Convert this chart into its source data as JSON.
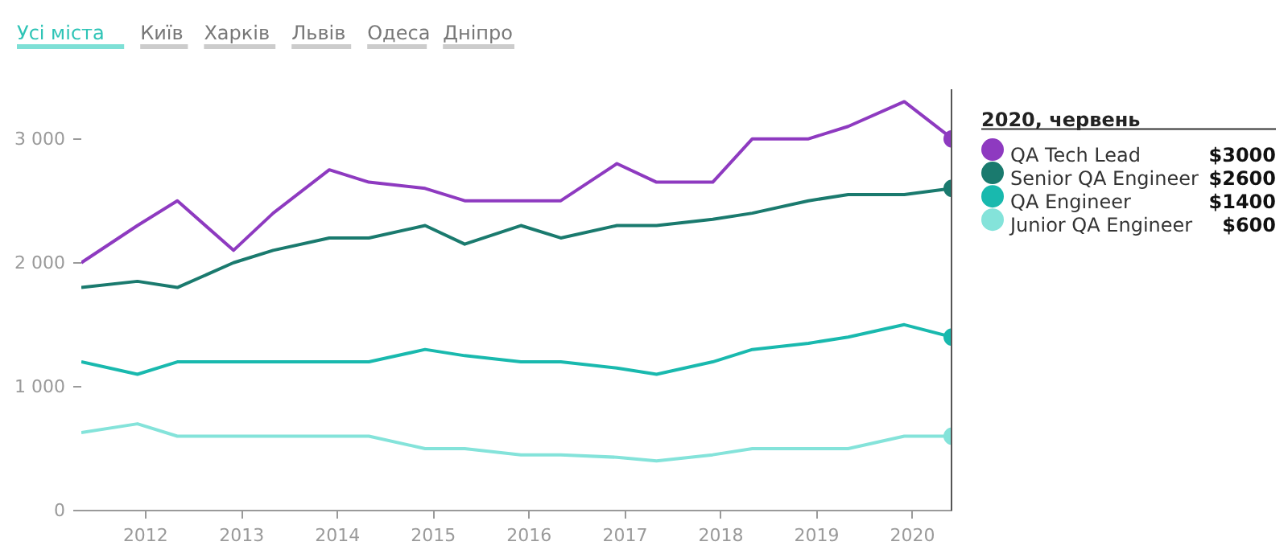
{
  "chart_data": {
    "type": "line",
    "annotations": [
      "Усі міста",
      "Київ",
      "Харків",
      "Львів",
      "Одеса",
      "Дніпро",
      "$3000",
      "$2600",
      "$1400",
      "$600"
    ],
    "legend_title": "2020, червень",
    "x": [
      "2011-05",
      "2011-12",
      "2012-05",
      "2012-12",
      "2013-05",
      "2013-12",
      "2014-05",
      "2014-12",
      "2015-05",
      "2015-12",
      "2016-05",
      "2016-12",
      "2017-05",
      "2017-12",
      "2018-05",
      "2018-12",
      "2019-05",
      "2019-12",
      "2020-06"
    ],
    "series": [
      {
        "name": "QA Tech Lead",
        "color": "#8e3ac0",
        "values": [
          2000,
          2300,
          2500,
          2100,
          2400,
          2750,
          2650,
          2600,
          2500,
          2500,
          2500,
          2800,
          2650,
          2650,
          3000,
          3000,
          3100,
          3300,
          3000
        ]
      },
      {
        "name": "Senior QA Engineer",
        "color": "#1a7a6e",
        "values": [
          1800,
          1850,
          1800,
          2000,
          2100,
          2200,
          2200,
          2300,
          2150,
          2300,
          2200,
          2300,
          2300,
          2350,
          2400,
          2500,
          2550,
          2550,
          2600
        ]
      },
      {
        "name": "QA Engineer",
        "color": "#19b9ae",
        "values": [
          1200,
          1100,
          1200,
          1200,
          1200,
          1200,
          1200,
          1300,
          1250,
          1200,
          1200,
          1150,
          1100,
          1200,
          1300,
          1350,
          1400,
          1500,
          1400
        ]
      },
      {
        "name": "Junior QA Engineer",
        "color": "#84e3da",
        "values": [
          630,
          700,
          600,
          600,
          600,
          600,
          600,
          500,
          500,
          450,
          450,
          430,
          400,
          450,
          500,
          500,
          500,
          600,
          600
        ]
      }
    ],
    "xlim": [
      "2011-05",
      "2020-06"
    ],
    "xticks": [
      "2012",
      "2013",
      "2014",
      "2015",
      "2016",
      "2017",
      "2018",
      "2019",
      "2020"
    ],
    "ylim": [
      0,
      3400
    ],
    "yticks": [
      0,
      {
        "value": 1000,
        "label": "1 000"
      },
      {
        "value": 2000,
        "label": "2 000"
      },
      {
        "value": 3000,
        "label": "3 000"
      }
    ],
    "ref_lines": [
      {
        "axis": "x",
        "value": "2020-06",
        "color": "#555555"
      }
    ],
    "grid": false,
    "legend": "right"
  }
}
